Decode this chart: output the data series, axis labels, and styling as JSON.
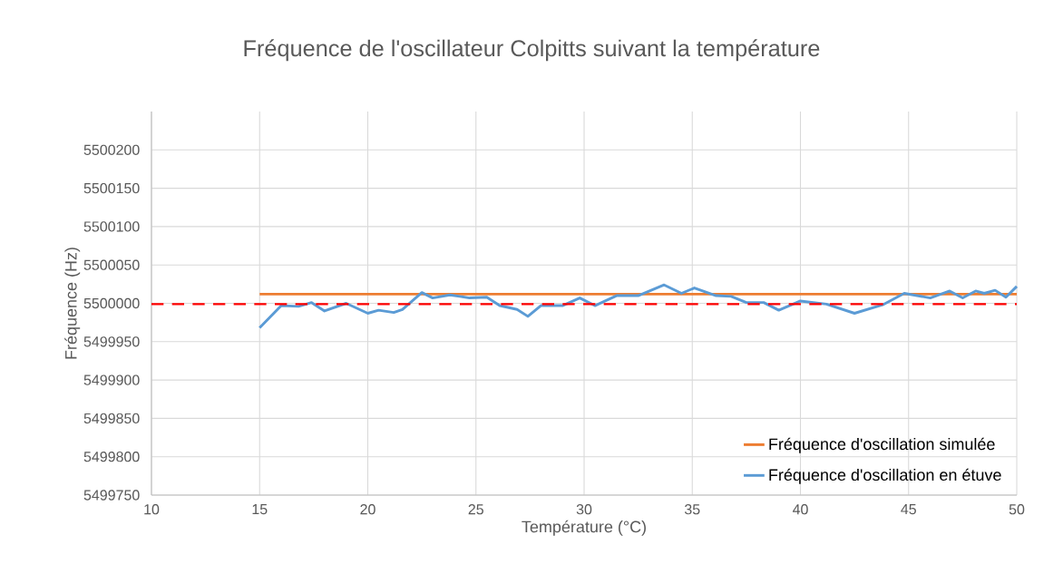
{
  "chart_data": {
    "type": "line",
    "title": "Fréquence de l'oscillateur Colpitts suivant la température",
    "xlabel": "Température (°C)",
    "ylabel": "Fréquence (Hz)",
    "xlim": [
      10,
      50
    ],
    "xticks": [
      10,
      15,
      20,
      25,
      30,
      35,
      40,
      45,
      50
    ],
    "ylim": [
      5499750,
      5500250
    ],
    "yticks": [
      5499750,
      5499800,
      5499850,
      5499900,
      5499950,
      5500000,
      5500050,
      5500100,
      5500150,
      5500200
    ],
    "grid": true,
    "legend": "bottom right",
    "marker": "none",
    "line_style": "solid",
    "ref_lines": [
      {
        "axis": "y",
        "value": 5499999,
        "color": "#ff0000",
        "line_style": "dashed"
      }
    ],
    "series": [
      {
        "name": "Fréquence d'oscillation simulée",
        "color": "#ed7d31",
        "x": [
          15,
          50
        ],
        "values": [
          5500012,
          5500012
        ]
      },
      {
        "name": "Fréquence d'oscillation en étuve",
        "color": "#5b9bd5",
        "x": [
          15,
          16,
          16.8,
          17.4,
          18,
          19,
          20,
          20.5,
          21.2,
          21.6,
          22.5,
          23,
          23.8,
          24.7,
          25.5,
          26.1,
          26.9,
          27.4,
          28,
          29,
          29.8,
          30.5,
          31.5,
          32.5,
          33.7,
          34.5,
          35.1,
          36.1,
          36.8,
          37.5,
          38.3,
          39,
          40,
          41.2,
          42.5,
          43.8,
          44.8,
          46,
          46.9,
          47.5,
          48.1,
          48.5,
          49,
          49.5,
          50
        ],
        "values": [
          5499968,
          5499997,
          5499996,
          5500001,
          5499990,
          5500000,
          5499987,
          5499991,
          5499988,
          5499992,
          5500014,
          5500007,
          5500011,
          5500007,
          5500008,
          5499997,
          5499992,
          5499983,
          5499997,
          5499997,
          5500007,
          5499997,
          5500010,
          5500010,
          5500024,
          5500013,
          5500020,
          5500010,
          5500009,
          5500001,
          5500001,
          5499991,
          5500003,
          5499999,
          5499987,
          5499998,
          5500013,
          5500007,
          5500016,
          5500007,
          5500016,
          5500013,
          5500017,
          5500008,
          5500022
        ]
      }
    ]
  }
}
